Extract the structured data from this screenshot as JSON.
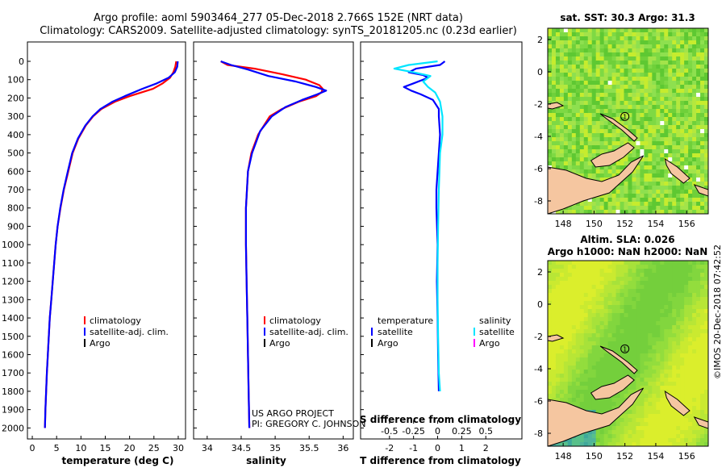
{
  "title": {
    "line1": "Argo profile: aoml 5903464_277 05-Dec-2018 2.766S 152E (NRT data)",
    "line2": "Climatology: CARS2009. Satellite-adjusted climatology: synTS_20181205.nc (0.23d earlier)"
  },
  "colors": {
    "climatology": "#ff0000",
    "satellite": "#0000ff",
    "argo": "#000000",
    "salinity_satellite": "#00e5ff",
    "salinity_argo": "#ff00ff"
  },
  "credit": {
    "project": "US ARGO PROJECT",
    "pi": "PI: GREGORY C. JOHNSON"
  },
  "watermark": "©IMOS 20-Dec-2018 07:42:52",
  "chart_data": [
    {
      "type": "line",
      "id": "temperature",
      "xlabel": "temperature (deg C)",
      "ylabel": "",
      "xlim": [
        -1,
        31.5
      ],
      "ylim": [
        0,
        2060
      ],
      "xticks": [
        0,
        5,
        10,
        15,
        20,
        25,
        30
      ],
      "yticks": [
        0,
        100,
        200,
        300,
        400,
        500,
        600,
        700,
        800,
        900,
        1000,
        1100,
        1200,
        1300,
        1400,
        1500,
        1600,
        1700,
        1800,
        1900,
        2000
      ],
      "legend": [
        "climatology",
        "satellite-adj. clim.",
        "Argo"
      ],
      "series": [
        {
          "name": "climatology",
          "color": "#ff0000",
          "points": [
            [
              29.6,
              0
            ],
            [
              29.4,
              30
            ],
            [
              29.0,
              60
            ],
            [
              28.3,
              90
            ],
            [
              26.8,
              120
            ],
            [
              24.8,
              150
            ],
            [
              20.0,
              190
            ],
            [
              17.0,
              220
            ],
            [
              14.2,
              260
            ],
            [
              12.5,
              300
            ],
            [
              11.0,
              350
            ],
            [
              9.5,
              420
            ],
            [
              8.3,
              500
            ],
            [
              7.4,
              600
            ],
            [
              6.5,
              700
            ],
            [
              5.8,
              800
            ],
            [
              5.2,
              900
            ],
            [
              4.8,
              1000
            ],
            [
              4.5,
              1100
            ],
            [
              4.2,
              1200
            ],
            [
              3.9,
              1300
            ],
            [
              3.6,
              1400
            ],
            [
              3.4,
              1500
            ],
            [
              3.2,
              1600
            ],
            [
              3.0,
              1700
            ],
            [
              2.85,
              1800
            ],
            [
              2.7,
              1900
            ],
            [
              2.6,
              2000
            ]
          ]
        },
        {
          "name": "satellite-adj. clim.",
          "color": "#0000ff",
          "points": [
            [
              29.9,
              0
            ],
            [
              29.8,
              30
            ],
            [
              29.3,
              60
            ],
            [
              28.0,
              90
            ],
            [
              25.6,
              120
            ],
            [
              22.6,
              150
            ],
            [
              19.0,
              190
            ],
            [
              16.5,
              220
            ],
            [
              14.0,
              260
            ],
            [
              12.4,
              300
            ],
            [
              10.9,
              350
            ],
            [
              9.4,
              420
            ],
            [
              8.2,
              500
            ],
            [
              7.3,
              600
            ],
            [
              6.45,
              700
            ],
            [
              5.75,
              800
            ],
            [
              5.2,
              900
            ],
            [
              4.8,
              1000
            ],
            [
              4.5,
              1100
            ],
            [
              4.2,
              1200
            ],
            [
              3.9,
              1300
            ],
            [
              3.6,
              1400
            ],
            [
              3.4,
              1500
            ],
            [
              3.2,
              1600
            ],
            [
              3.0,
              1700
            ],
            [
              2.85,
              1800
            ],
            [
              2.7,
              1900
            ],
            [
              2.6,
              2000
            ]
          ]
        }
      ]
    },
    {
      "type": "line",
      "id": "salinity",
      "xlabel": "salinity",
      "ylabel": "",
      "xlim": [
        33.8,
        36.15
      ],
      "ylim": [
        0,
        2060
      ],
      "xticks": [
        34,
        34.5,
        35,
        35.5,
        36
      ],
      "xticklabels": [
        "34",
        "34.5",
        "35",
        "35.5",
        "36"
      ],
      "legend": [
        "climatology",
        "satellite-adj. clim.",
        "Argo"
      ],
      "series": [
        {
          "name": "climatology",
          "color": "#ff0000",
          "points": [
            [
              34.2,
              0
            ],
            [
              34.3,
              20
            ],
            [
              34.7,
              40
            ],
            [
              35.1,
              70
            ],
            [
              35.45,
              100
            ],
            [
              35.65,
              130
            ],
            [
              35.7,
              150
            ],
            [
              35.68,
              170
            ],
            [
              35.6,
              190
            ],
            [
              35.35,
              220
            ],
            [
              35.1,
              260
            ],
            [
              34.92,
              300
            ],
            [
              34.75,
              400
            ],
            [
              34.65,
              500
            ],
            [
              34.6,
              600
            ],
            [
              34.57,
              800
            ],
            [
              34.57,
              1000
            ],
            [
              34.58,
              1200
            ],
            [
              34.59,
              1400
            ],
            [
              34.6,
              1600
            ],
            [
              34.61,
              1800
            ],
            [
              34.62,
              2000
            ]
          ]
        },
        {
          "name": "satellite-adj. clim.",
          "color": "#0000ff",
          "points": [
            [
              34.2,
              0
            ],
            [
              34.35,
              20
            ],
            [
              34.6,
              45
            ],
            [
              34.9,
              80
            ],
            [
              35.3,
              110
            ],
            [
              35.6,
              140
            ],
            [
              35.75,
              160
            ],
            [
              35.62,
              180
            ],
            [
              35.4,
              210
            ],
            [
              35.15,
              250
            ],
            [
              34.95,
              300
            ],
            [
              34.78,
              380
            ],
            [
              34.66,
              500
            ],
            [
              34.6,
              600
            ],
            [
              34.57,
              800
            ],
            [
              34.57,
              1000
            ],
            [
              34.58,
              1200
            ],
            [
              34.59,
              1400
            ],
            [
              34.6,
              1600
            ],
            [
              34.61,
              1800
            ],
            [
              34.62,
              2000
            ]
          ]
        }
      ]
    },
    {
      "type": "line",
      "id": "difference",
      "xlabel": "T difference from climatology",
      "xlabel2": "S difference from climatology",
      "xlim": [
        -3.2,
        3.5
      ],
      "ylim": [
        0,
        2060
      ],
      "xticks": [
        -2,
        -1,
        0,
        1,
        2
      ],
      "sticks": [
        -0.5,
        -0.25,
        0,
        0.25,
        0.5
      ],
      "sticklabels": [
        "-0.5",
        "-0.25",
        "0",
        "0.25",
        "0.5"
      ],
      "legend_left_title": "temperature",
      "legend_right_title": "salinity",
      "legend_left": [
        "satellite",
        "Argo"
      ],
      "legend_right": [
        "satellite",
        "Argo"
      ],
      "series": [
        {
          "name": "T satellite",
          "color": "#0000ff",
          "points": [
            [
              0.3,
              0
            ],
            [
              0.1,
              20
            ],
            [
              -0.9,
              40
            ],
            [
              -1.2,
              60
            ],
            [
              -0.6,
              75
            ],
            [
              -0.4,
              90
            ],
            [
              -1.0,
              120
            ],
            [
              -1.4,
              140
            ],
            [
              -1.1,
              160
            ],
            [
              -0.7,
              180
            ],
            [
              -0.2,
              210
            ],
            [
              0.05,
              260
            ],
            [
              0.05,
              300
            ],
            [
              0.1,
              400
            ],
            [
              0.05,
              500
            ],
            [
              0.0,
              600
            ],
            [
              -0.05,
              700
            ],
            [
              -0.05,
              800
            ],
            [
              0.0,
              1000
            ],
            [
              -0.03,
              1200
            ],
            [
              0.0,
              1400
            ],
            [
              0.02,
              1600
            ],
            [
              0.05,
              1800
            ]
          ]
        },
        {
          "name": "S satellite",
          "color": "#00e5ff",
          "points": [
            [
              0.0,
              0
            ],
            [
              -1.2,
              20
            ],
            [
              -1.8,
              40
            ],
            [
              -1.0,
              60
            ],
            [
              -0.3,
              80
            ],
            [
              -0.6,
              110
            ],
            [
              -0.4,
              140
            ],
            [
              -0.1,
              170
            ],
            [
              0.1,
              220
            ],
            [
              0.2,
              300
            ],
            [
              0.2,
              400
            ],
            [
              0.1,
              500
            ],
            [
              0.05,
              700
            ],
            [
              0.02,
              900
            ],
            [
              0.0,
              1100
            ],
            [
              0.0,
              1300
            ],
            [
              0.02,
              1500
            ],
            [
              0.05,
              1700
            ],
            [
              0.1,
              1800
            ]
          ]
        }
      ]
    },
    {
      "type": "heatmap",
      "id": "map_sst",
      "title": "sat. SST: 30.3 Argo: 31.3",
      "xlim": [
        147,
        157.4
      ],
      "ylim": [
        -8.8,
        2.7
      ],
      "xticks": [
        148,
        150,
        152,
        154,
        156
      ],
      "yticks": [
        2,
        0,
        -2,
        -4,
        -6,
        -8
      ],
      "profile_marker": [
        152,
        -2.766
      ],
      "profile_label": "1"
    },
    {
      "type": "heatmap",
      "id": "map_sla",
      "title": "Altim. SLA: 0.026",
      "subtitle": "Argo h1000: NaN h2000: NaN",
      "xlim": [
        147,
        157.4
      ],
      "ylim": [
        -8.8,
        2.7
      ],
      "xticks": [
        148,
        150,
        152,
        154,
        156
      ],
      "yticks": [
        2,
        0,
        -2,
        -4,
        -6,
        -8
      ],
      "profile_marker": [
        152,
        -2.766
      ],
      "profile_label": "1"
    }
  ]
}
